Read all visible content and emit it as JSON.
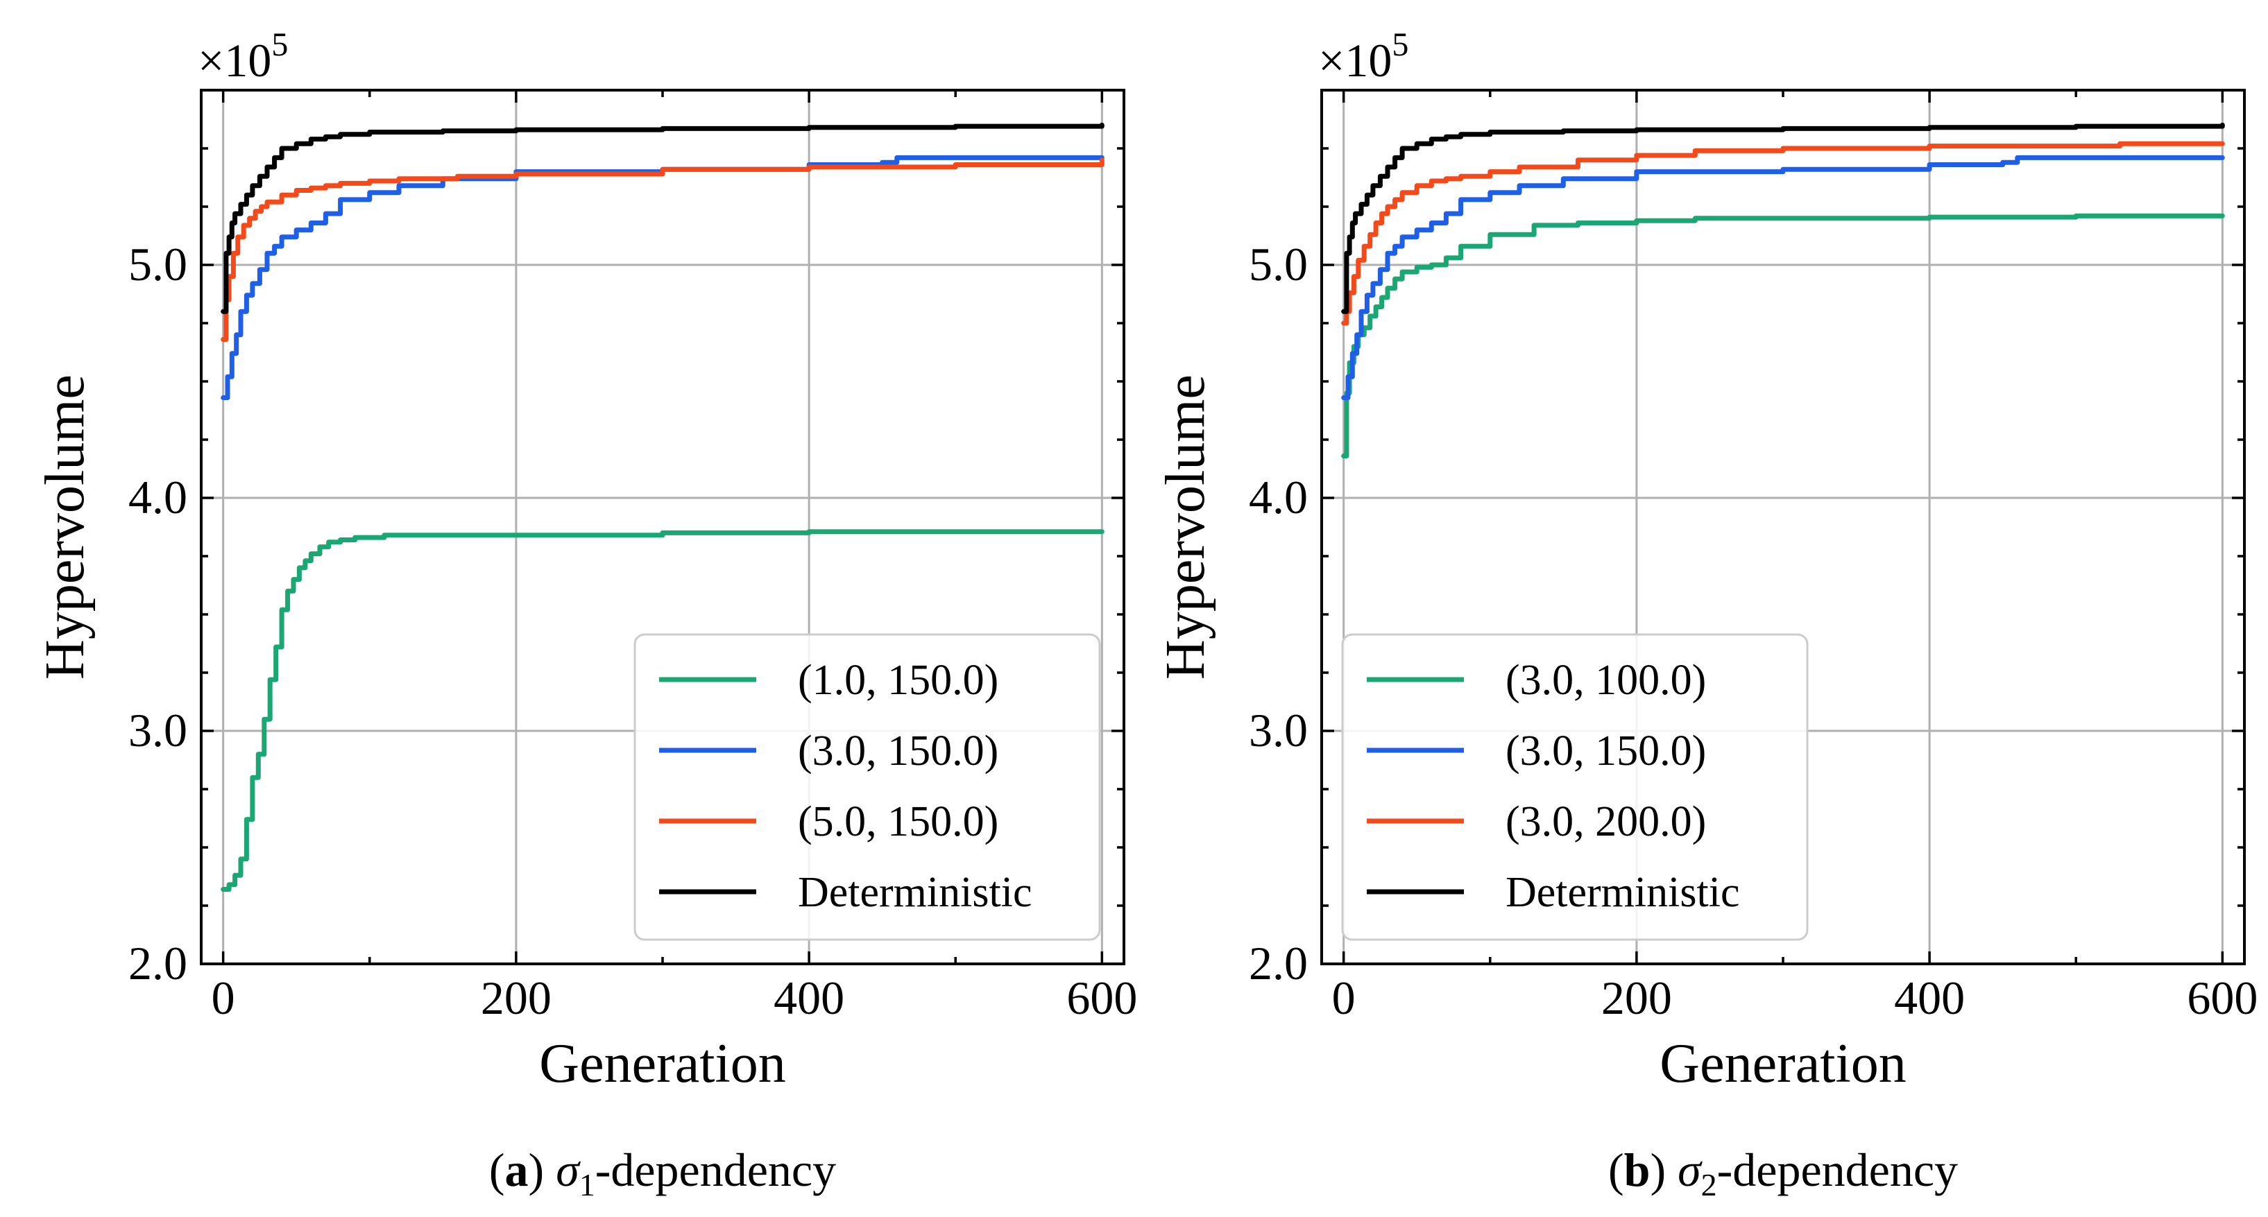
{
  "chart_data": [
    {
      "type": "line",
      "caption_tag": "a",
      "caption_symbol": "σ",
      "caption_sub": "1",
      "caption_rest": "-dependency",
      "xlabel": "Generation",
      "ylabel": "Hypervolume",
      "y_multiplier": "×10",
      "y_multiplier_exp": "5",
      "xlim": [
        -15,
        615
      ],
      "ylim": [
        2.0,
        5.75
      ],
      "xticks": [
        0,
        200,
        400,
        600
      ],
      "xtick_labels": [
        "0",
        "200",
        "400",
        "600"
      ],
      "yticks": [
        2.0,
        3.0,
        4.0,
        5.0
      ],
      "ytick_labels": [
        "2.0",
        "3.0",
        "4.0",
        "5.0"
      ],
      "grid": true,
      "legend_position": "lower-right",
      "series": [
        {
          "name": "(1.0, 150.0)",
          "color": "#1aa774",
          "x": [
            0,
            4,
            8,
            12,
            16,
            20,
            24,
            28,
            32,
            36,
            40,
            44,
            48,
            52,
            56,
            60,
            66,
            72,
            80,
            90,
            110,
            150,
            200,
            300,
            400,
            500,
            600
          ],
          "y": [
            2.32,
            2.34,
            2.38,
            2.45,
            2.62,
            2.8,
            2.9,
            3.05,
            3.22,
            3.36,
            3.52,
            3.6,
            3.65,
            3.7,
            3.73,
            3.76,
            3.79,
            3.81,
            3.82,
            3.83,
            3.84,
            3.84,
            3.84,
            3.85,
            3.855,
            3.855,
            3.855
          ]
        },
        {
          "name": "(3.0, 150.0)",
          "color": "#1f5fe6",
          "x": [
            0,
            3,
            6,
            9,
            12,
            16,
            20,
            25,
            30,
            35,
            40,
            50,
            60,
            70,
            80,
            100,
            120,
            150,
            200,
            300,
            400,
            450,
            460,
            500,
            600
          ],
          "y": [
            4.43,
            4.52,
            4.62,
            4.7,
            4.8,
            4.87,
            4.92,
            4.98,
            5.05,
            5.08,
            5.12,
            5.15,
            5.18,
            5.22,
            5.28,
            5.31,
            5.34,
            5.37,
            5.4,
            5.41,
            5.43,
            5.44,
            5.46,
            5.46,
            5.46
          ]
        },
        {
          "name": "(5.0, 150.0)",
          "color": "#f24a1a",
          "x": [
            0,
            2,
            4,
            7,
            10,
            14,
            18,
            22,
            26,
            30,
            40,
            50,
            60,
            70,
            80,
            100,
            120,
            160,
            200,
            300,
            400,
            500,
            600
          ],
          "y": [
            4.68,
            4.85,
            4.95,
            5.05,
            5.12,
            5.17,
            5.2,
            5.23,
            5.25,
            5.27,
            5.3,
            5.32,
            5.33,
            5.34,
            5.35,
            5.36,
            5.37,
            5.38,
            5.39,
            5.41,
            5.42,
            5.43,
            5.45
          ]
        },
        {
          "name": "Deterministic",
          "color": "#000000",
          "x": [
            0,
            2,
            4,
            6,
            8,
            12,
            16,
            20,
            25,
            30,
            35,
            40,
            50,
            60,
            70,
            80,
            100,
            150,
            200,
            300,
            400,
            500,
            600
          ],
          "y": [
            4.8,
            5.05,
            5.12,
            5.18,
            5.22,
            5.26,
            5.3,
            5.34,
            5.38,
            5.42,
            5.46,
            5.5,
            5.52,
            5.54,
            5.55,
            5.56,
            5.57,
            5.575,
            5.58,
            5.585,
            5.59,
            5.595,
            5.6
          ]
        }
      ]
    },
    {
      "type": "line",
      "caption_tag": "b",
      "caption_symbol": "σ",
      "caption_sub": "2",
      "caption_rest": "-dependency",
      "xlabel": "Generation",
      "ylabel": "Hypervolume",
      "y_multiplier": "×10",
      "y_multiplier_exp": "5",
      "xlim": [
        -15,
        615
      ],
      "ylim": [
        2.0,
        5.75
      ],
      "xticks": [
        0,
        200,
        400,
        600
      ],
      "xtick_labels": [
        "0",
        "200",
        "400",
        "600"
      ],
      "yticks": [
        2.0,
        3.0,
        4.0,
        5.0
      ],
      "ytick_labels": [
        "2.0",
        "3.0",
        "4.0",
        "5.0"
      ],
      "grid": true,
      "legend_position": "lower-left",
      "series": [
        {
          "name": "(3.0, 100.0)",
          "color": "#1aa774",
          "x": [
            0,
            2,
            4,
            7,
            10,
            14,
            18,
            22,
            26,
            30,
            35,
            40,
            50,
            60,
            70,
            80,
            100,
            130,
            160,
            200,
            240,
            300,
            400,
            500,
            600
          ],
          "y": [
            4.18,
            4.45,
            4.58,
            4.65,
            4.7,
            4.73,
            4.78,
            4.82,
            4.86,
            4.9,
            4.94,
            4.97,
            4.99,
            5.0,
            5.03,
            5.08,
            5.13,
            5.17,
            5.18,
            5.19,
            5.2,
            5.2,
            5.205,
            5.21,
            5.21
          ]
        },
        {
          "name": "(3.0, 150.0)",
          "color": "#1f5fe6",
          "x": [
            0,
            3,
            6,
            9,
            12,
            16,
            20,
            25,
            30,
            35,
            40,
            50,
            60,
            70,
            80,
            100,
            120,
            150,
            200,
            300,
            400,
            450,
            460,
            500,
            600
          ],
          "y": [
            4.43,
            4.52,
            4.62,
            4.7,
            4.8,
            4.87,
            4.92,
            4.98,
            5.05,
            5.08,
            5.12,
            5.15,
            5.18,
            5.22,
            5.28,
            5.31,
            5.34,
            5.37,
            5.4,
            5.41,
            5.43,
            5.44,
            5.46,
            5.46,
            5.46
          ]
        },
        {
          "name": "(3.0, 200.0)",
          "color": "#f24a1a",
          "x": [
            0,
            2,
            4,
            7,
            10,
            14,
            18,
            22,
            26,
            30,
            35,
            40,
            50,
            60,
            70,
            80,
            100,
            120,
            160,
            200,
            240,
            300,
            400,
            500,
            530,
            600
          ],
          "y": [
            4.75,
            4.8,
            4.88,
            4.95,
            5.02,
            5.08,
            5.13,
            5.18,
            5.22,
            5.25,
            5.28,
            5.31,
            5.34,
            5.36,
            5.37,
            5.38,
            5.4,
            5.42,
            5.45,
            5.47,
            5.49,
            5.5,
            5.51,
            5.51,
            5.52,
            5.52
          ]
        },
        {
          "name": "Deterministic",
          "color": "#000000",
          "x": [
            0,
            2,
            4,
            6,
            8,
            12,
            16,
            20,
            25,
            30,
            35,
            40,
            50,
            60,
            70,
            80,
            100,
            150,
            200,
            300,
            400,
            500,
            600
          ],
          "y": [
            4.8,
            5.05,
            5.12,
            5.18,
            5.22,
            5.26,
            5.3,
            5.34,
            5.38,
            5.42,
            5.46,
            5.5,
            5.52,
            5.54,
            5.55,
            5.56,
            5.57,
            5.575,
            5.58,
            5.585,
            5.59,
            5.595,
            5.6
          ]
        }
      ]
    }
  ]
}
